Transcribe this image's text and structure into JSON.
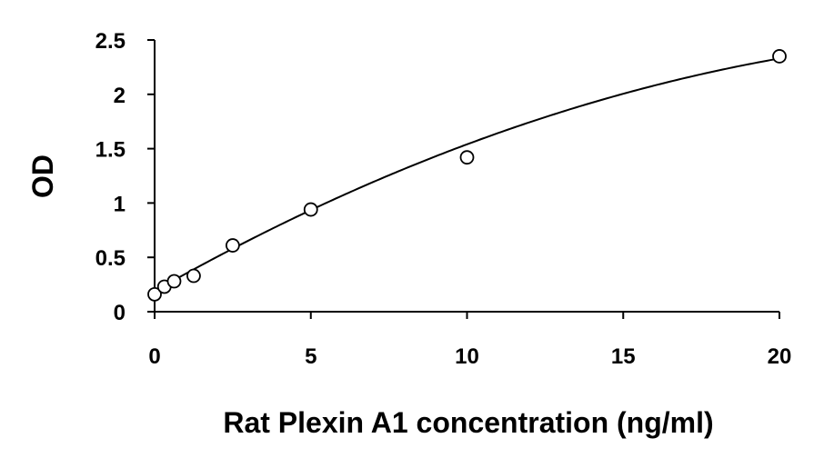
{
  "chart_data": {
    "type": "scatter",
    "title": "",
    "xlabel": "Rat Plexin A1 concentration (ng/ml)",
    "ylabel": "OD",
    "xlim": [
      0,
      20
    ],
    "ylim": [
      0,
      2.5
    ],
    "x_ticks": [
      "0",
      "5",
      "10",
      "15",
      "20"
    ],
    "y_ticks": [
      "0",
      "0.5",
      "1",
      "1.5",
      "2",
      "2.5"
    ],
    "grid": false,
    "legend": "none",
    "series": [
      {
        "x": [
          0,
          0.313,
          0.625,
          1.25,
          2.5,
          5,
          10,
          20
        ],
        "y": [
          0.16,
          0.23,
          0.28,
          0.33,
          0.61,
          0.94,
          1.42,
          2.35
        ]
      }
    ],
    "fit_curve": {
      "type": "polynomial",
      "coefficients": [
        0.19,
        0.163,
        -0.0028
      ]
    },
    "colors": {
      "axis": "#000000",
      "marker_edge": "#000000",
      "marker_fill": "#ffffff",
      "curve": "#000000"
    }
  }
}
